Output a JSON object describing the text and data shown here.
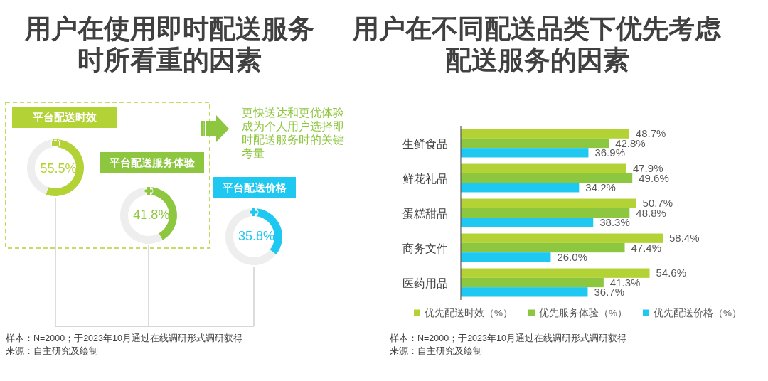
{
  "chart_data": [
    {
      "type": "donut",
      "title": "用户在使用即时配送服务时所看重的因素",
      "categories": [
        "平台配送时效",
        null
      ],
      "values": [
        55.5,
        44.5
      ],
      "colors": [
        "#b2d235",
        "#eeeeee"
      ],
      "value_labels": [
        "55.5%",
        null
      ],
      "annotations": [
        "更快送达和更优体验成为个人用户选择即时配送服务时的关键考量",
        "样本：N=2000；于2023年10月通过在线调研形式调研获得",
        "来源：自主研究及绘制"
      ]
    },
    {
      "type": "donut",
      "categories": [
        "平台配送服务体验",
        null
      ],
      "values": [
        41.8,
        58.2
      ],
      "colors": [
        "#8dc63f",
        "#eeeeee"
      ],
      "value_labels": [
        "41.8%",
        null
      ]
    },
    {
      "type": "donut",
      "categories": [
        "平台配送价格",
        null
      ],
      "values": [
        35.8,
        64.2
      ],
      "colors": [
        "#1fc8f0",
        "#eeeeee"
      ],
      "value_labels": [
        "35.8%",
        null
      ]
    },
    {
      "type": "bar",
      "orientation": "horizontal",
      "title": "用户在不同配送品类下优先考虑配送服务的因素",
      "categories": [
        "生鲜食品",
        "鲜花礼品",
        "蛋糕甜品",
        "商务文件",
        "医药用品"
      ],
      "series": [
        {
          "name": "优先配送时效（%）",
          "color": "#b2d235",
          "values": [
            48.7,
            47.9,
            50.7,
            58.4,
            54.6
          ],
          "value_labels": [
            "48.7%",
            "47.9%",
            "50.7%",
            "58.4%",
            "54.6%"
          ]
        },
        {
          "name": "优先服务体验（%）",
          "color": "#8dc63f",
          "values": [
            42.8,
            49.6,
            48.8,
            47.4,
            41.3
          ],
          "value_labels": [
            "42.8%",
            "49.6%",
            "48.8%",
            "47.4%",
            "41.3%"
          ]
        },
        {
          "name": "优先配送价格（%）",
          "color": "#1fc8f0",
          "values": [
            36.9,
            34.2,
            38.3,
            26.0,
            36.7
          ],
          "value_labels": [
            "36.9%",
            "34.2%",
            "38.3%",
            "26.0%",
            "36.7%"
          ]
        }
      ],
      "legend": "bottom",
      "annotations": [
        "样本：N=2000；于2023年10月通过在线调研形式调研获得",
        "来源：自主研究及绘制"
      ]
    }
  ]
}
